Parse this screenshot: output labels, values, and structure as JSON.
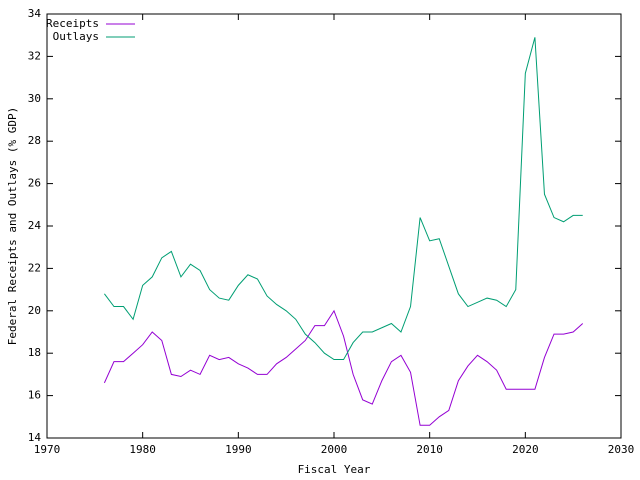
{
  "chart_data": {
    "type": "line",
    "xlabel": "Fiscal Year",
    "ylabel": "Federal Receipts and Outlays (% GDP)",
    "x": [
      1976,
      1977,
      1978,
      1979,
      1980,
      1981,
      1982,
      1983,
      1984,
      1985,
      1986,
      1987,
      1988,
      1989,
      1990,
      1991,
      1992,
      1993,
      1994,
      1995,
      1996,
      1997,
      1998,
      1999,
      2000,
      2001,
      2002,
      2003,
      2004,
      2005,
      2006,
      2007,
      2008,
      2009,
      2010,
      2011,
      2012,
      2013,
      2014,
      2015,
      2016,
      2017,
      2018,
      2019,
      2020,
      2021,
      2022,
      2023,
      2024,
      2025,
      2026
    ],
    "series": [
      {
        "name": "Receipts",
        "color": "#9400d3",
        "values": [
          16.6,
          17.6,
          17.6,
          18.0,
          18.4,
          19.0,
          18.6,
          17.0,
          16.9,
          17.2,
          17.0,
          17.9,
          17.7,
          17.8,
          17.5,
          17.3,
          17.0,
          17.0,
          17.5,
          17.8,
          18.2,
          18.6,
          19.3,
          19.3,
          20.0,
          18.8,
          17.0,
          15.8,
          15.6,
          16.7,
          17.6,
          17.9,
          17.1,
          14.6,
          14.6,
          15.0,
          15.3,
          16.7,
          17.4,
          17.9,
          17.6,
          17.2,
          16.3,
          16.3,
          16.3,
          16.3,
          17.8,
          18.9,
          18.9,
          19.0,
          19.4
        ]
      },
      {
        "name": "Outlays",
        "color": "#009e73",
        "values": [
          20.8,
          20.2,
          20.2,
          19.6,
          21.2,
          21.6,
          22.5,
          22.8,
          21.6,
          22.2,
          21.9,
          21.0,
          20.6,
          20.5,
          21.2,
          21.7,
          21.5,
          20.7,
          20.3,
          20.0,
          19.6,
          18.9,
          18.5,
          18.0,
          17.7,
          17.7,
          18.5,
          19.0,
          19.0,
          19.2,
          19.4,
          19.0,
          20.2,
          24.4,
          23.3,
          23.4,
          22.1,
          20.8,
          20.2,
          20.4,
          20.6,
          20.5,
          20.2,
          21.0,
          31.2,
          32.9,
          25.5,
          24.4,
          24.2,
          24.5,
          24.5
        ]
      }
    ],
    "xlim": [
      1970,
      2030
    ],
    "xticks": [
      1970,
      1980,
      1990,
      2000,
      2010,
      2020,
      2030
    ],
    "ylim": [
      14,
      34
    ],
    "yticks": [
      14,
      16,
      18,
      20,
      22,
      24,
      26,
      28,
      30,
      32,
      34
    ],
    "legend": "top left"
  }
}
